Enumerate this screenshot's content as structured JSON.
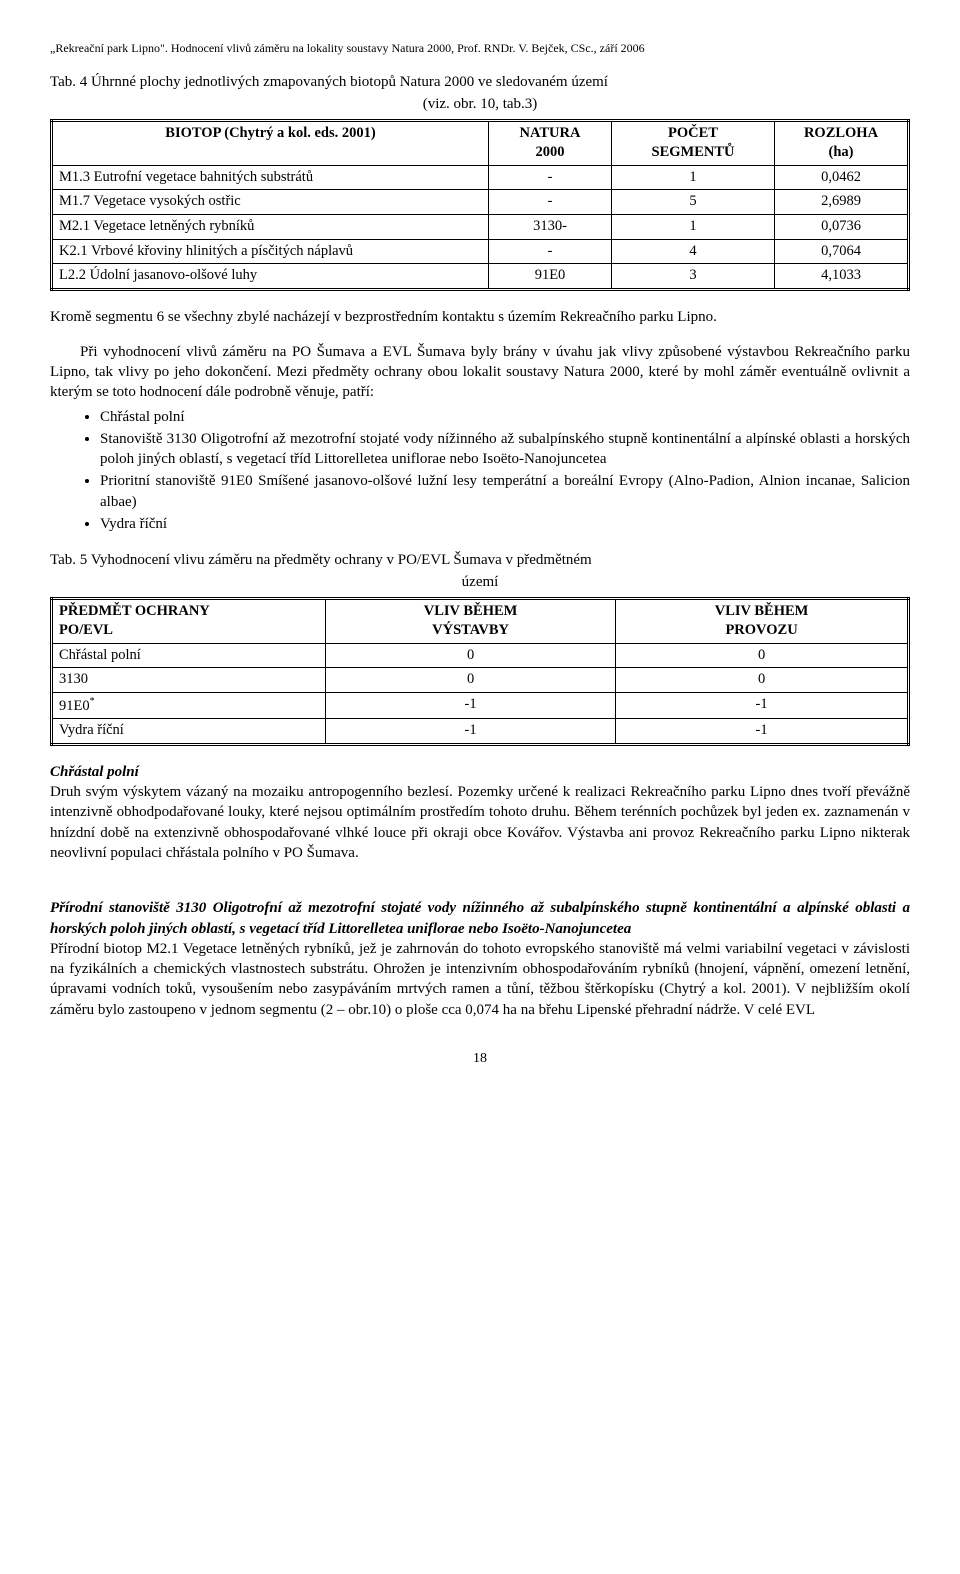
{
  "header": "„Rekreační park Lipno\". Hodnocení vlivů záměru na lokality soustavy Natura 2000, Prof. RNDr. V. Bejček, CSc., září 2006",
  "tab4": {
    "caption_line1": "Tab. 4 Úhrnné plochy jednotlivých zmapovaných biotopů Natura 2000 ve sledovaném území",
    "caption_line2": "(viz. obr. 10, tab.3)",
    "headers": {
      "c0": "BIOTOP (Chytrý a kol. eds. 2001)",
      "c1a": "NATURA",
      "c1b": "2000",
      "c2a": "POČET",
      "c2b": "SEGMENTŮ",
      "c3a": "ROZLOHA",
      "c3b": "(ha)"
    },
    "rows": [
      {
        "c0": "M1.3 Eutrofní vegetace bahnitých substrátů",
        "c1": "-",
        "c2": "1",
        "c3": "0,0462"
      },
      {
        "c0": "M1.7 Vegetace vysokých ostřic",
        "c1": "-",
        "c2": "5",
        "c3": "2,6989"
      },
      {
        "c0": "M2.1 Vegetace letněných rybníků",
        "c1": "3130-",
        "c2": "1",
        "c3": "0,0736"
      },
      {
        "c0": "K2.1 Vrbové křoviny hlinitých a písčitých náplavů",
        "c1": "-",
        "c2": "4",
        "c3": "0,7064"
      },
      {
        "c0": "L2.2 Údolní jasanovo-olšové luhy",
        "c1": "91E0",
        "c2": "3",
        "c3": "4,1033"
      }
    ]
  },
  "para1": "Kromě segmentu 6 se všechny zbylé nacházejí v bezprostředním kontaktu s územím Rekreačního parku Lipno.",
  "para2": "Při vyhodnocení vlivů záměru na PO Šumava a EVL Šumava byly brány v úvahu jak vlivy způsobené výstavbou Rekreačního parku Lipno, tak vlivy po jeho dokončení. Mezi předměty ochrany obou lokalit soustavy Natura 2000, které by mohl záměr eventuálně ovlivnit a kterým se toto hodnocení dále podrobně věnuje, patří:",
  "bullets": [
    "Chřástal polní",
    "Stanoviště 3130 Oligotrofní až mezotrofní stojaté vody nížinného až subalpínského stupně kontinentální a alpínské oblasti a horských poloh jiných oblastí, s vegetací tříd Littorelletea uniflorae nebo Isoëto-Nanojuncetea",
    "Prioritní stanoviště 91E0 Smíšené jasanovo-olšové lužní lesy temperátní a boreální Evropy (Alno-Padion, Alnion incanae, Salicion albae)",
    "Vydra říční"
  ],
  "tab5": {
    "caption_line1": "Tab. 5 Vyhodnocení vlivu záměru na předměty ochrany v PO/EVL Šumava v předmětném",
    "caption_line2": "území",
    "headers": {
      "c0a": "PŘEDMĚT OCHRANY",
      "c0b": "PO/EVL",
      "c1a": "VLIV BĚHEM",
      "c1b": "VÝSTAVBY",
      "c2a": "VLIV BĚHEM",
      "c2b": "PROVOZU"
    },
    "rows": [
      {
        "c0": "Chřástal polní",
        "c1": "0",
        "c2": "0"
      },
      {
        "c0": "3130",
        "c1": "0",
        "c2": "0"
      },
      {
        "c0": "91E0",
        "sup": "*",
        "c1": "-1",
        "c2": "-1"
      },
      {
        "c0": "Vydra říční",
        "c1": "-1",
        "c2": "-1"
      }
    ]
  },
  "section1": {
    "title": "Chřástal polní",
    "body": "Druh svým výskytem vázaný na mozaiku antropogenního bezlesí. Pozemky určené k realizaci Rekreačního parku Lipno dnes tvoří převážně intenzivně obhodpodařované louky, které nejsou optimálním prostředím tohoto druhu. Během terénních pochůzek byl jeden ex. zaznamenán v hnízdní době na extenzivně obhospodařované vlhké louce při okraji obce Kovářov. Výstavba ani provoz Rekreačního parku Lipno nikterak neovlivní populaci chřástala polního v PO Šumava."
  },
  "section2": {
    "title": "Přírodní stanoviště 3130 Oligotrofní až mezotrofní stojaté vody nížinného až subalpínského stupně kontinentální a alpínské oblasti a horských poloh jiných oblastí, s vegetací tříd Littorelletea uniflorae nebo Isoëto-Nanojuncetea",
    "body": "Přírodní biotop M2.1 Vegetace letněných rybníků, jež je zahrnován do tohoto evropského stanoviště má velmi variabilní vegetaci v závislosti na fyzikálních a chemických vlastnostech substrátu. Ohrožen je intenzivním obhospodařováním rybníků (hnojení, vápnění, omezení letnění, úpravami vodních toků, vysoušením nebo zasypáváním mrtvých ramen a tůní, těžbou štěrkopísku (Chytrý a kol. 2001). V nejbližším okolí záměru bylo zastoupeno v jednom segmentu (2 – obr.10) o ploše cca 0,074 ha na břehu Lipenské přehradní nádrže. V celé EVL"
  },
  "pagenum": "18"
}
